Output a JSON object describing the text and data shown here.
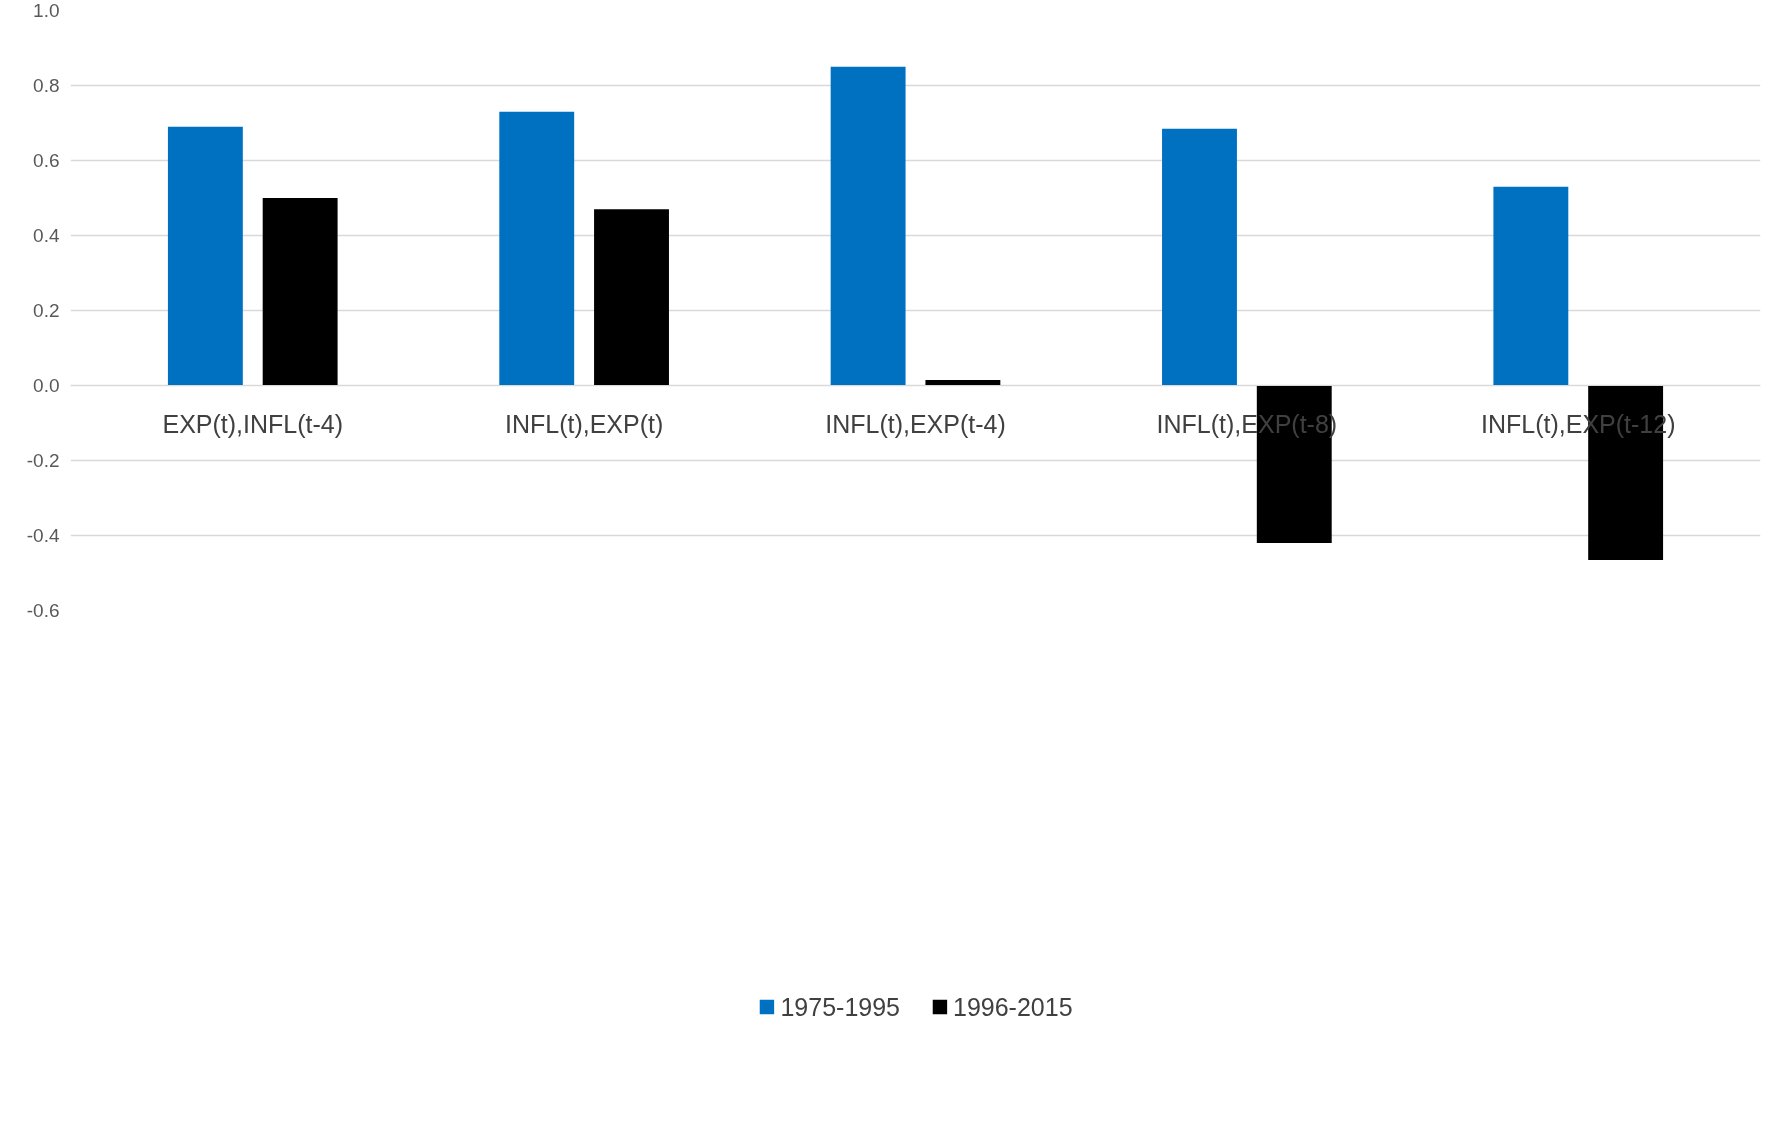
{
  "chart_data": {
    "type": "bar",
    "categories": [
      "EXP(t),INFL(t-4)",
      "INFL(t),EXP(t)",
      "INFL(t),EXP(t-4)",
      "INFL(t),EXP(t-8)",
      "INFL(t),EXP(t-12)"
    ],
    "series": [
      {
        "name": "1975-1995",
        "color": "#0070c0",
        "values": [
          0.69,
          0.73,
          0.85,
          0.685,
          0.53
        ]
      },
      {
        "name": "1996-2015",
        "color": "#000000",
        "values": [
          0.5,
          0.47,
          0.015,
          -0.42,
          -0.465
        ]
      }
    ],
    "ylim": [
      -0.6,
      1.0
    ],
    "yticks": [
      {
        "value": -0.6,
        "label": "-0.6"
      },
      {
        "value": -0.4,
        "label": "-0.4"
      },
      {
        "value": -0.2,
        "label": "-0.2"
      },
      {
        "value": 0,
        "label": "0.0"
      },
      {
        "value": 0.2,
        "label": "0.2"
      },
      {
        "value": 0.4,
        "label": "0.4"
      },
      {
        "value": 0.6,
        "label": "0.6"
      },
      {
        "value": 0.8,
        "label": "0.8"
      },
      {
        "value": 1.0,
        "label": "1.0"
      }
    ],
    "grid": "y",
    "legend": "bottom"
  }
}
